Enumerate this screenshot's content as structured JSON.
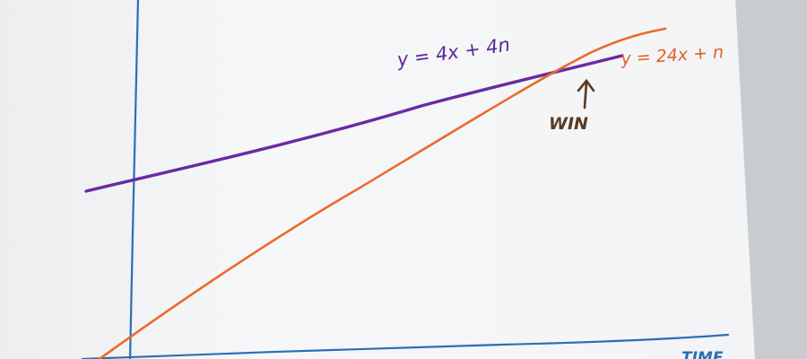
{
  "chart_data": {
    "type": "line",
    "title": "",
    "xlabel": "TIME",
    "ylabel": "",
    "grid": false,
    "x_axis_color": "#2a6fb5",
    "y_axis_color": "#2a6fb5",
    "series": [
      {
        "name": "y = 4x + 4n",
        "color": "#6a2aa4",
        "label_color": "#5a2a9a"
      },
      {
        "name": "y = 24x + n",
        "color": "#ea6a2a",
        "label_color": "#e0612a"
      }
    ],
    "annotation": {
      "text": "WIN",
      "color": "#5a3a22"
    }
  }
}
